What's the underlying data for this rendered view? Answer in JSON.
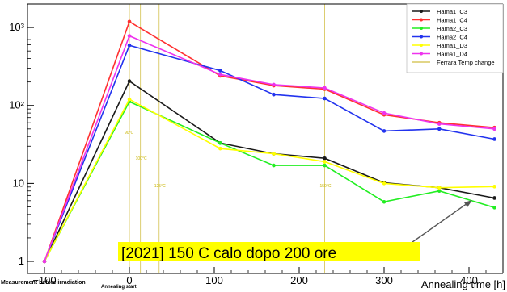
{
  "chart_data": {
    "type": "line",
    "xlabel": "Annealing time [h]",
    "ylog": true,
    "xlim": [
      -120,
      440
    ],
    "ylim": [
      0.7,
      2000
    ],
    "x_ticks": [
      -100,
      0,
      100,
      200,
      300,
      400
    ],
    "y_ticks": [
      {
        "v": 1,
        "label": "1"
      },
      {
        "v": 10,
        "label": "10"
      },
      {
        "v": 100,
        "label": "10²"
      },
      {
        "v": 1000,
        "label": "10³"
      }
    ],
    "legend_position": "top-right",
    "series": [
      {
        "name": "Hama1_C3",
        "color": "#1a1a1a",
        "x": [
          -100,
          0,
          107,
          170,
          230,
          300,
          365,
          430
        ],
        "y": [
          1,
          205,
          33,
          24,
          21,
          10.2,
          8.8,
          6.5
        ]
      },
      {
        "name": "Hama1_C4",
        "color": "#ff3030",
        "x": [
          -100,
          0,
          107,
          170,
          230,
          300,
          365,
          430
        ],
        "y": [
          1,
          1190,
          240,
          180,
          162,
          76,
          60,
          52
        ]
      },
      {
        "name": "Hama2_C3",
        "color": "#22ee22",
        "x": [
          -100,
          0,
          107,
          170,
          230,
          300,
          365,
          430
        ],
        "y": [
          1,
          112,
          33,
          17,
          17,
          5.8,
          8,
          4.9
        ]
      },
      {
        "name": "Hama2_C4",
        "color": "#2233ee",
        "x": [
          -100,
          0,
          107,
          170,
          230,
          300,
          365,
          430
        ],
        "y": [
          1,
          590,
          280,
          138,
          123,
          47,
          50,
          37
        ]
      },
      {
        "name": "Hama1_D3",
        "color": "#ffff00",
        "x": [
          -100,
          0,
          107,
          170,
          230,
          300,
          365,
          430
        ],
        "y": [
          1,
          120,
          28,
          24,
          19,
          10,
          8.8,
          9.1
        ]
      },
      {
        "name": "Hama1_D4",
        "color": "#ee33ee",
        "x": [
          -100,
          0,
          107,
          170,
          230,
          300,
          365,
          430
        ],
        "y": [
          1,
          780,
          250,
          185,
          168,
          80,
          58,
          50
        ]
      }
    ],
    "temp_change": {
      "name": "Ferrara Temp change",
      "color": "#d8c860",
      "x": [
        0,
        13,
        35,
        230
      ],
      "labels": [
        "90°C",
        "100°C",
        "125°C",
        "150°C"
      ]
    },
    "annotations": {
      "before": "Measurement before irradiation",
      "start": "Annealing start",
      "note": "[2021] 150 C calo dopo 200 ore"
    }
  }
}
